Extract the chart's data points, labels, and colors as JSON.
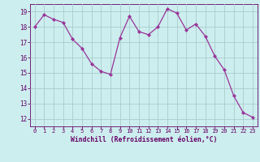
{
  "x": [
    0,
    1,
    2,
    3,
    4,
    5,
    6,
    7,
    8,
    9,
    10,
    11,
    12,
    13,
    14,
    15,
    16,
    17,
    18,
    19,
    20,
    21,
    22,
    23
  ],
  "y": [
    18.0,
    18.8,
    18.5,
    18.3,
    17.2,
    16.6,
    15.6,
    15.1,
    14.9,
    17.3,
    18.7,
    17.7,
    17.5,
    18.0,
    19.2,
    18.9,
    17.8,
    18.2,
    17.4,
    16.1,
    15.2,
    13.5,
    12.4,
    12.1
  ],
  "line_color": "#993399",
  "marker_color": "#993399",
  "bg_color": "#cceeee",
  "grid_color": "#aacccc",
  "xlabel": "Windchill (Refroidissement éolien,°C)",
  "xlabel_color": "#660066",
  "tick_color": "#660066",
  "ylim": [
    11.5,
    19.5
  ],
  "xlim": [
    -0.5,
    23.5
  ],
  "yticks": [
    12,
    13,
    14,
    15,
    16,
    17,
    18,
    19
  ],
  "xticks": [
    0,
    1,
    2,
    3,
    4,
    5,
    6,
    7,
    8,
    9,
    10,
    11,
    12,
    13,
    14,
    15,
    16,
    17,
    18,
    19,
    20,
    21,
    22,
    23
  ]
}
